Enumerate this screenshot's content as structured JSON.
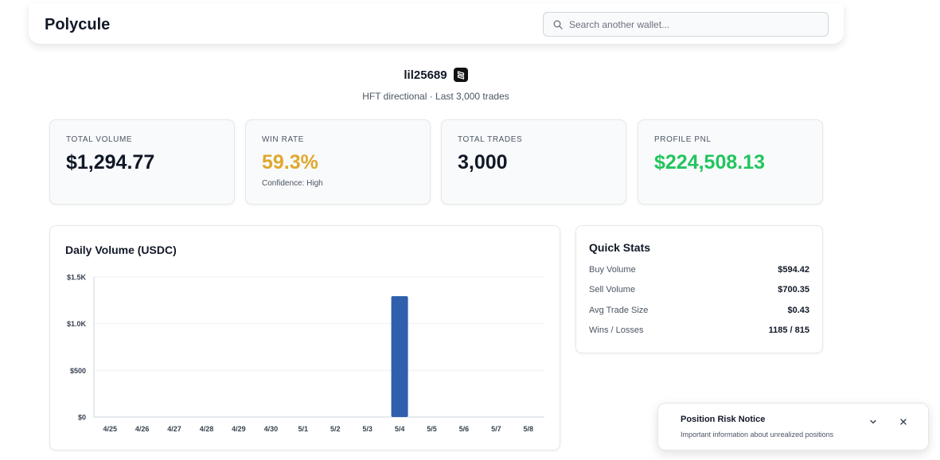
{
  "header": {
    "brand": "Polycule",
    "search_placeholder": "Search another wallet..."
  },
  "profile": {
    "username": "lil25689",
    "badge_icon": "polymarket-logo-icon",
    "subtitle": "HFT directional · Last 3,000 trades"
  },
  "cards": [
    {
      "label": "TOTAL VOLUME",
      "value": "$1,294.77",
      "color": "#111827"
    },
    {
      "label": "WIN RATE",
      "value": "59.3%",
      "note": "Confidence: High",
      "color": "#e0a82e"
    },
    {
      "label": "TOTAL TRADES",
      "value": "3,000",
      "color": "#111827"
    },
    {
      "label": "PROFILE PNL",
      "value": "$224,508.13",
      "color": "#22c55e"
    }
  ],
  "chart": {
    "title": "Daily Volume (USDC)"
  },
  "chart_data": {
    "type": "bar",
    "title": "Daily Volume (USDC)",
    "categories": [
      "4/25",
      "4/26",
      "4/27",
      "4/28",
      "4/29",
      "4/30",
      "5/1",
      "5/2",
      "5/3",
      "5/4",
      "5/5",
      "5/6",
      "5/7",
      "5/8"
    ],
    "values": [
      0,
      0,
      0,
      0,
      0,
      0,
      0,
      0,
      0,
      1294.77,
      0,
      0,
      0,
      0
    ],
    "ylim": [
      0,
      1500
    ],
    "yticks": [
      0,
      500,
      1000,
      1500
    ],
    "ytick_labels": [
      "$0",
      "$500",
      "$1.0K",
      "$1.5K"
    ],
    "bar_color": "#2f5fad",
    "grid": true
  },
  "quick_stats": {
    "title": "Quick Stats",
    "rows": [
      {
        "label": "Buy Volume",
        "value": "$594.42"
      },
      {
        "label": "Sell Volume",
        "value": "$700.35"
      },
      {
        "label": "Avg Trade Size",
        "value": "$0.43"
      },
      {
        "label": "Wins / Losses",
        "value": "1185 / 815"
      }
    ]
  },
  "notice": {
    "title": "Position Risk Notice",
    "description": "Important information about unrealized positions"
  }
}
